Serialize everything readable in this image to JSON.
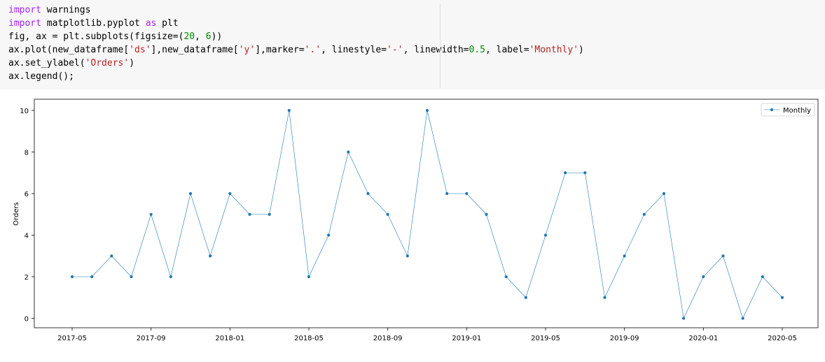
{
  "code_cell": {
    "lines": [
      [
        {
          "t": "import",
          "c": "kw"
        },
        {
          "t": " warnings",
          "c": ""
        }
      ],
      [
        {
          "t": "import",
          "c": "kw"
        },
        {
          "t": " matplotlib.pyplot ",
          "c": ""
        },
        {
          "t": "as",
          "c": "kw"
        },
        {
          "t": " plt",
          "c": ""
        }
      ],
      [
        {
          "t": "fig, ax = plt.subplots(figsize=(",
          "c": ""
        },
        {
          "t": "20",
          "c": "num"
        },
        {
          "t": ", ",
          "c": ""
        },
        {
          "t": "6",
          "c": "num"
        },
        {
          "t": "))",
          "c": ""
        }
      ],
      [
        {
          "t": "ax.plot(new_dataframe[",
          "c": ""
        },
        {
          "t": "'ds'",
          "c": "str"
        },
        {
          "t": "],new_dataframe[",
          "c": ""
        },
        {
          "t": "'y'",
          "c": "str"
        },
        {
          "t": "],marker=",
          "c": ""
        },
        {
          "t": "'.'",
          "c": "str"
        },
        {
          "t": ", linestyle=",
          "c": ""
        },
        {
          "t": "'-'",
          "c": "str"
        },
        {
          "t": ", linewidth=",
          "c": ""
        },
        {
          "t": "0.5",
          "c": "num"
        },
        {
          "t": ", label=",
          "c": ""
        },
        {
          "t": "'Monthly'",
          "c": "str"
        },
        {
          "t": ")",
          "c": ""
        }
      ],
      [
        {
          "t": "ax.set_ylabel(",
          "c": ""
        },
        {
          "t": "'Orders'",
          "c": "str"
        },
        {
          "t": ")",
          "c": ""
        }
      ],
      [
        {
          "t": "ax.legend();",
          "c": ""
        }
      ]
    ]
  },
  "chart_data": {
    "type": "line",
    "ylabel": "Orders",
    "xlabel": "",
    "ylim": [
      0,
      10
    ],
    "yticks": [
      0,
      2,
      4,
      6,
      8,
      10
    ],
    "xticks": [
      "2017-05",
      "2017-09",
      "2018-01",
      "2018-05",
      "2018-09",
      "2019-01",
      "2019-05",
      "2019-09",
      "2020-01",
      "2020-05"
    ],
    "x": [
      "2017-05",
      "2017-06",
      "2017-07",
      "2017-08",
      "2017-09",
      "2017-10",
      "2017-11",
      "2017-12",
      "2018-01",
      "2018-02",
      "2018-03",
      "2018-04",
      "2018-05",
      "2018-06",
      "2018-07",
      "2018-08",
      "2018-09",
      "2018-10",
      "2018-11",
      "2018-12",
      "2019-01",
      "2019-02",
      "2019-03",
      "2019-04",
      "2019-05",
      "2019-06",
      "2019-07",
      "2019-08",
      "2019-09",
      "2019-10",
      "2019-11",
      "2019-12",
      "2020-01",
      "2020-02",
      "2020-03",
      "2020-04",
      "2020-05"
    ],
    "series": [
      {
        "name": "Monthly",
        "values": [
          2,
          2,
          3,
          2,
          5,
          2,
          6,
          3,
          6,
          5,
          5,
          10,
          2,
          4,
          8,
          6,
          5,
          3,
          10,
          6,
          6,
          5,
          2,
          1,
          4,
          7,
          7,
          1,
          3,
          5,
          6,
          0,
          2,
          3,
          0,
          2,
          1
        ]
      }
    ],
    "grid": false,
    "legend": "top-right",
    "color": "#1f77b4"
  }
}
